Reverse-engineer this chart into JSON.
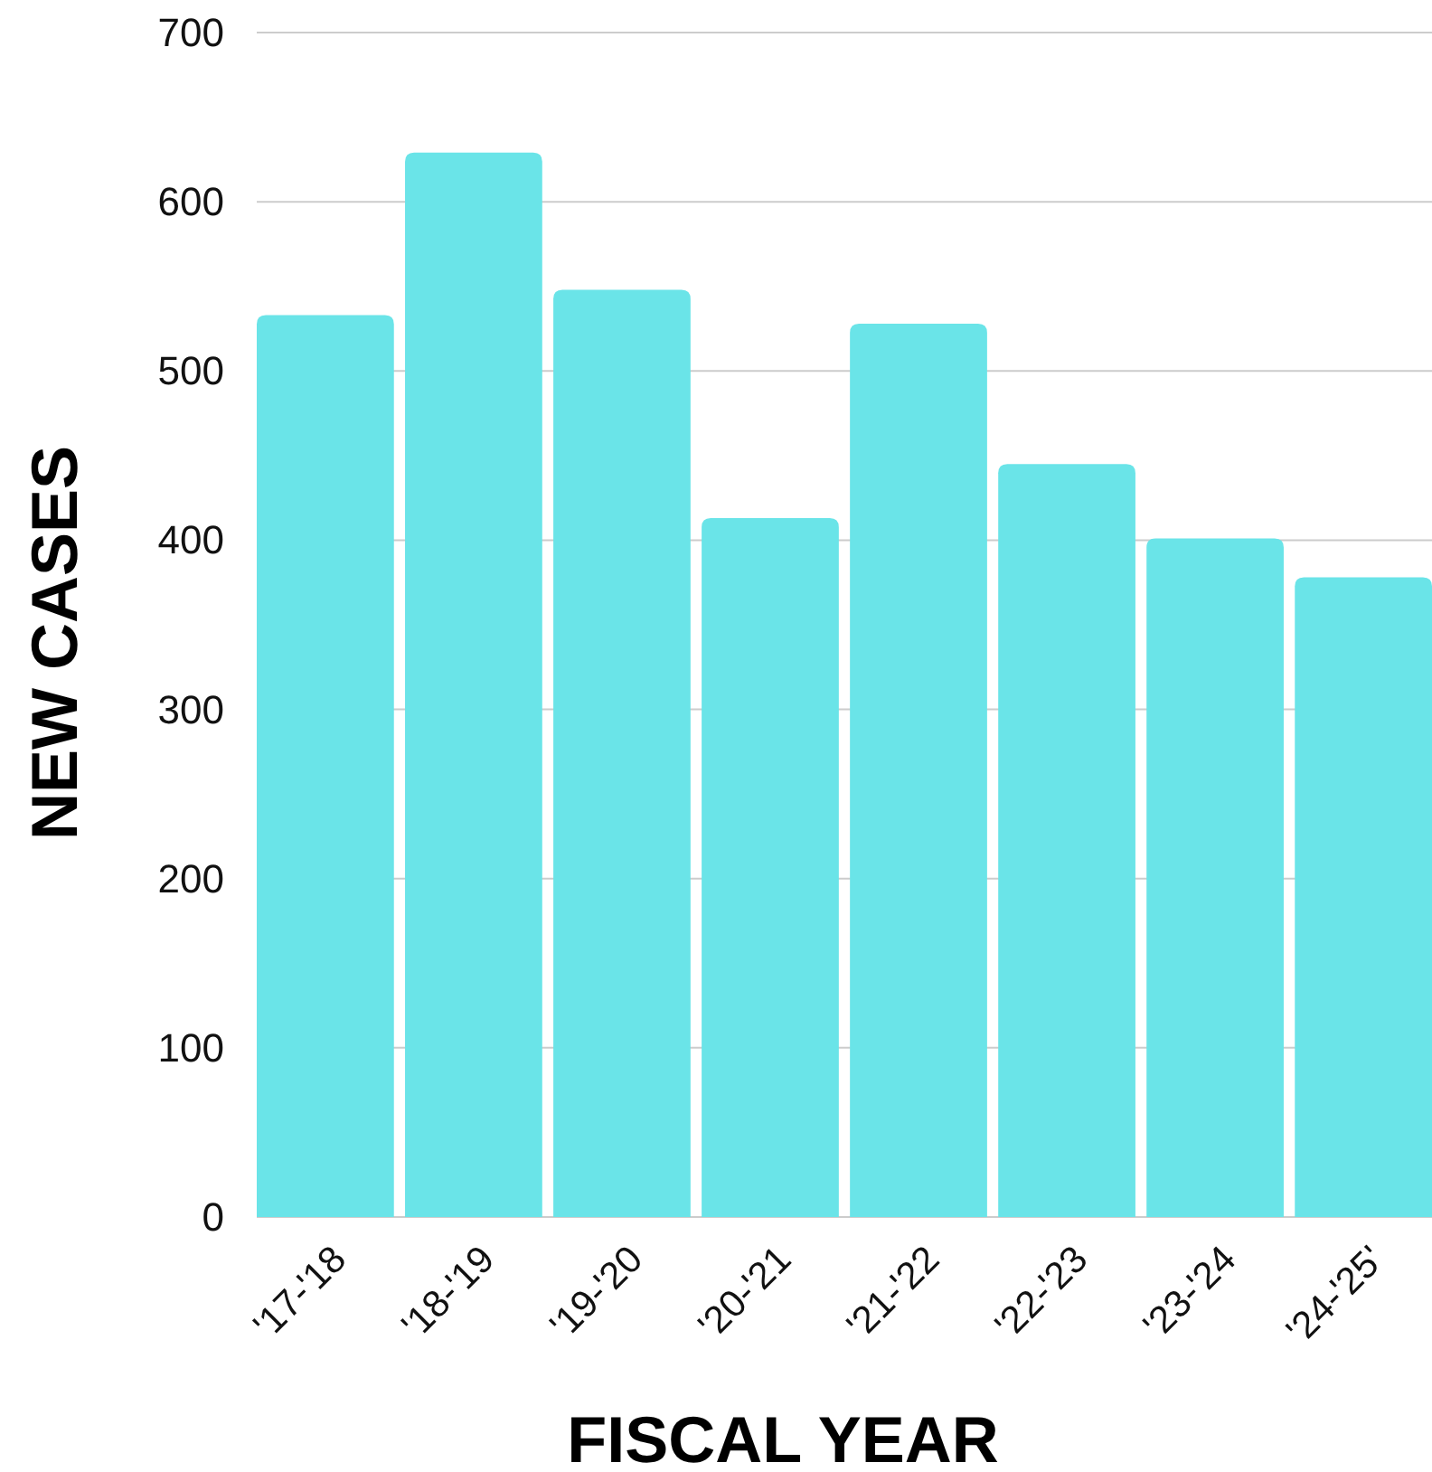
{
  "chart_data": {
    "type": "bar",
    "xlabel": "FISCAL YEAR",
    "ylabel": "NEW CASES",
    "categories": [
      "'17-'18",
      "'18-'19",
      "'19-'20",
      "'20-'21",
      "'21-'22",
      "'22-'23",
      "'23-'24",
      "'24-'25'"
    ],
    "values": [
      533,
      629,
      548,
      413,
      528,
      445,
      401,
      378
    ],
    "color": "#6ae4e8",
    "ylim": [
      0,
      700
    ],
    "yticks": [
      0,
      100,
      200,
      300,
      400,
      500,
      600,
      700
    ],
    "grid": "y"
  }
}
